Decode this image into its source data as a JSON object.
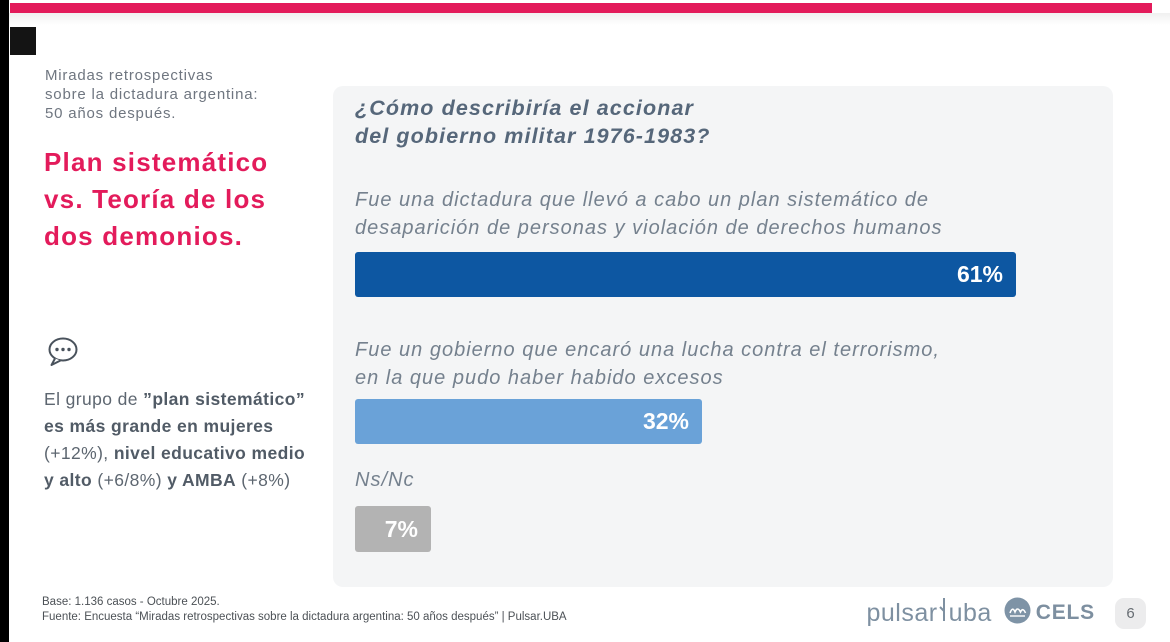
{
  "slide": {
    "accent_color": "#e31b5b",
    "kicker": {
      "lines": [
        "Miradas retrospectivas",
        "sobre la dictadura argentina:",
        "50 años después."
      ]
    },
    "title": {
      "lines": [
        "Plan sistemático",
        "vs. Teoría de los",
        "dos demonios."
      ],
      "color": "#e31b5b"
    },
    "note": {
      "icon": "speech-bubble-icon",
      "lines": [
        [
          {
            "t": "El grupo de ",
            "b": false
          },
          {
            "t": "”plan sistemático”",
            "b": true
          }
        ],
        [
          {
            "t": "es más grande en mujeres",
            "b": true
          }
        ],
        [
          {
            "t": "(+12%), ",
            "b": false
          },
          {
            "t": "nivel educativo medio",
            "b": true
          }
        ],
        [
          {
            "t": "y alto",
            "b": true
          },
          {
            "t": " (+6/8%) ",
            "b": false
          },
          {
            "t": "y AMBA",
            "b": true
          },
          {
            "t": " (+8%)",
            "b": false
          }
        ]
      ]
    },
    "question": {
      "lines": [
        "¿Cómo describiría el accionar",
        "del gobierno militar 1976-1983?"
      ]
    },
    "footer": {
      "base": "Base: 1.136 casos - Octubre 2025.",
      "fuente": "Fuente: Encuesta “Miradas retrospectivas sobre la dictadura argentina: 50 años después” | Pulsar.UBA",
      "logo_pulsar": "pulsar",
      "logo_uba": "uba",
      "logo_cels": "CELS",
      "page_number": "6"
    }
  },
  "chart_data": {
    "type": "bar",
    "orientation": "horizontal",
    "title": "¿Cómo describiría el accionar del gobierno militar 1976-1983?",
    "unit": "%",
    "xlim": [
      0,
      100
    ],
    "grid": false,
    "legend": "none",
    "bars": [
      {
        "label": "Fue una dictadura que llevó a cabo un plan sistemático de desaparición de personas y violación de derechos humanos",
        "label_lines": [
          "Fue una dictadura que llevó a cabo un plan sistemático de",
          "desaparición de personas y violación de derechos humanos"
        ],
        "value": 61,
        "display": "61%",
        "color": "#0d57a2"
      },
      {
        "label": "Fue un gobierno que encaró una lucha contra el terrorismo, en la que pudo haber habido excesos",
        "label_lines": [
          "Fue un gobierno que encaró una lucha contra el terrorismo,",
          "en la que pudo haber habido excesos"
        ],
        "value": 32,
        "display": "32%",
        "color": "#6aa2d8"
      },
      {
        "label": "Ns/Nc",
        "label_lines": [
          "Ns/Nc"
        ],
        "value": 7,
        "display": "7%",
        "color": "#b3b3b3"
      }
    ]
  }
}
